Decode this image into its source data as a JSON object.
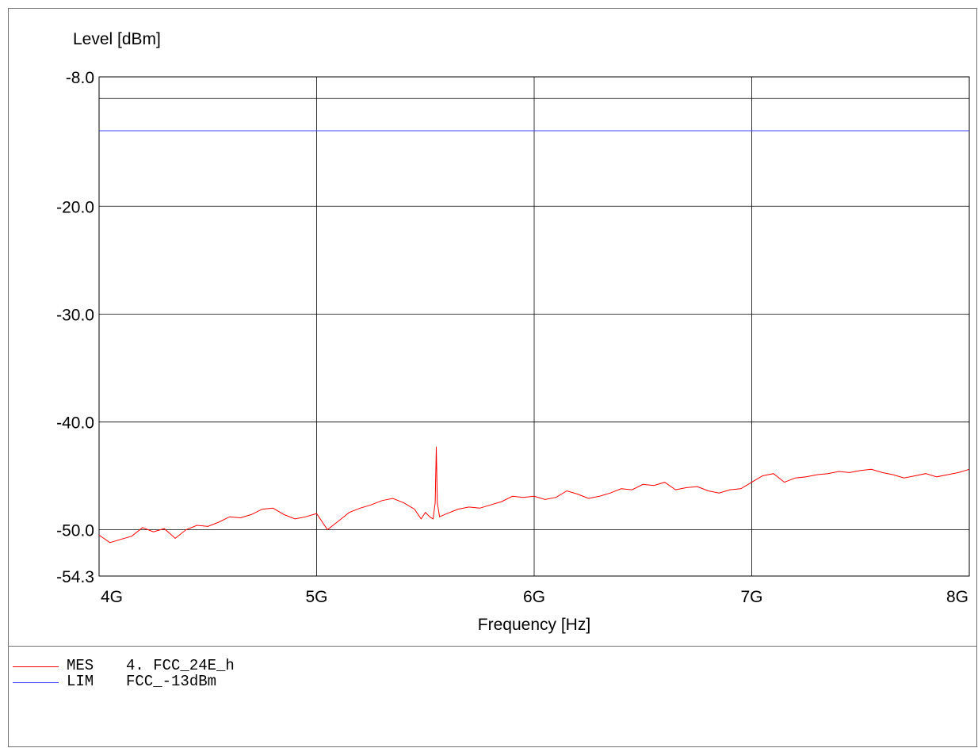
{
  "chart_data": {
    "type": "line",
    "xlabel": "Frequency [Hz]",
    "ylabel": "Level [dBm]",
    "xlim": [
      4000000000,
      8000000000
    ],
    "ylim": [
      -54.3,
      -8.0
    ],
    "x_ticks": [
      {
        "value": 4000000000,
        "label": "4G"
      },
      {
        "value": 5000000000,
        "label": "5G"
      },
      {
        "value": 6000000000,
        "label": "6G"
      },
      {
        "value": 7000000000,
        "label": "7G"
      },
      {
        "value": 8000000000,
        "label": "8G"
      }
    ],
    "y_ticks": [
      {
        "value": -8.0,
        "label": "-8.0"
      },
      {
        "value": -20.0,
        "label": "-20.0"
      },
      {
        "value": -30.0,
        "label": "-30.0"
      },
      {
        "value": -40.0,
        "label": "-40.0"
      },
      {
        "value": -50.0,
        "label": "-50.0"
      },
      {
        "value": -54.3,
        "label": "-54.3"
      }
    ],
    "reference_lines": [
      {
        "y": -10.0,
        "color": "#000000"
      }
    ],
    "grid": true,
    "series": [
      {
        "name": "MES",
        "color": "#ff0000",
        "x": [
          4000000000,
          4050000000,
          4100000000,
          4150000000,
          4200000000,
          4250000000,
          4300000000,
          4350000000,
          4400000000,
          4450000000,
          4500000000,
          4550000000,
          4600000000,
          4650000000,
          4700000000,
          4750000000,
          4800000000,
          4850000000,
          4900000000,
          4950000000,
          5000000000,
          5050000000,
          5100000000,
          5150000000,
          5200000000,
          5250000000,
          5300000000,
          5350000000,
          5400000000,
          5450000000,
          5480000000,
          5500000000,
          5520000000,
          5535000000,
          5545000000,
          5550000000,
          5555000000,
          5565000000,
          5600000000,
          5650000000,
          5700000000,
          5750000000,
          5800000000,
          5850000000,
          5900000000,
          5950000000,
          6000000000,
          6050000000,
          6100000000,
          6150000000,
          6200000000,
          6250000000,
          6300000000,
          6350000000,
          6400000000,
          6450000000,
          6500000000,
          6550000000,
          6600000000,
          6650000000,
          6700000000,
          6750000000,
          6800000000,
          6850000000,
          6900000000,
          6950000000,
          7000000000,
          7050000000,
          7100000000,
          7150000000,
          7200000000,
          7250000000,
          7300000000,
          7350000000,
          7400000000,
          7450000000,
          7500000000,
          7550000000,
          7600000000,
          7650000000,
          7700000000,
          7750000000,
          7800000000,
          7850000000,
          7900000000,
          7950000000,
          8000000000
        ],
        "y": [
          -50.5,
          -51.2,
          -50.9,
          -50.6,
          -49.8,
          -50.2,
          -49.9,
          -50.8,
          -50.0,
          -49.6,
          -49.7,
          -49.3,
          -48.8,
          -48.9,
          -48.6,
          -48.1,
          -48.0,
          -48.6,
          -49.0,
          -48.8,
          -48.5,
          -50.0,
          -49.2,
          -48.4,
          -48.0,
          -47.7,
          -47.3,
          -47.1,
          -47.5,
          -48.1,
          -49.0,
          -48.4,
          -48.8,
          -49.0,
          -47.5,
          -42.3,
          -47.5,
          -48.8,
          -48.5,
          -48.1,
          -47.9,
          -48.0,
          -47.7,
          -47.4,
          -46.9,
          -47.0,
          -46.9,
          -47.2,
          -47.0,
          -46.4,
          -46.7,
          -47.1,
          -46.9,
          -46.6,
          -46.2,
          -46.3,
          -45.8,
          -45.9,
          -45.6,
          -46.3,
          -46.1,
          -46.0,
          -46.4,
          -46.6,
          -46.3,
          -46.2,
          -45.6,
          -45.0,
          -44.8,
          -45.6,
          -45.2,
          -45.1,
          -44.9,
          -44.8,
          -44.6,
          -44.7,
          -44.5,
          -44.4,
          -44.7,
          -44.9,
          -45.2,
          -45.0,
          -44.8,
          -45.1,
          -44.9,
          -44.7,
          -44.4
        ]
      },
      {
        "name": "LIM",
        "color": "#4040ff",
        "x": [
          4000000000,
          8000000000
        ],
        "y": [
          -13.0,
          -13.0
        ]
      }
    ]
  },
  "legend": [
    {
      "tag": "MES",
      "name": "4. FCC_24E_h",
      "color": "#ff0000"
    },
    {
      "tag": "LIM",
      "name": "FCC_-13dBm",
      "color": "#4040ff"
    }
  ]
}
